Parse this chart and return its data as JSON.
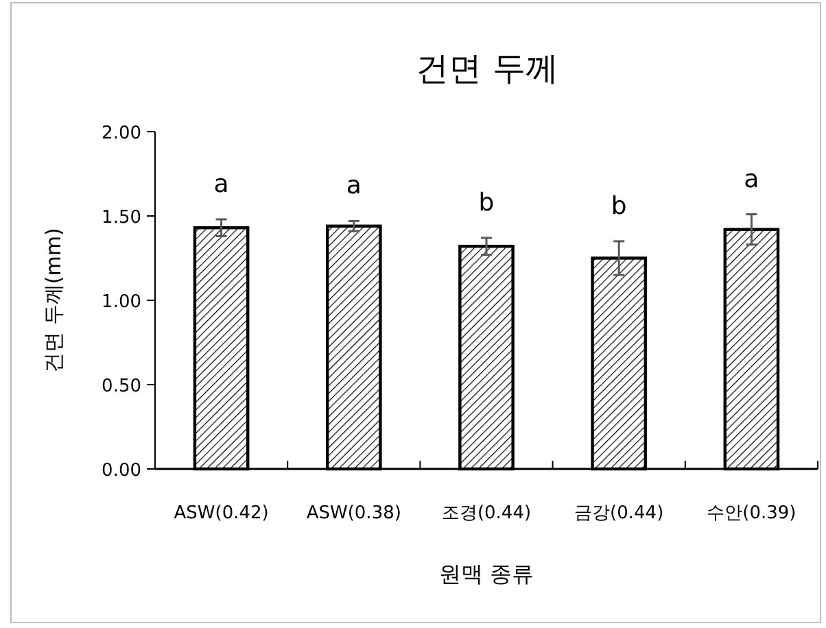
{
  "chart_data": {
    "type": "bar",
    "title": "건면 두께",
    "xlabel": "원맥 종류",
    "ylabel": "건면 두께(mm)",
    "categories": [
      "ASW(0.42)",
      "ASW(0.38)",
      "조경(0.44)",
      "금강(0.44)",
      "수안(0.39)"
    ],
    "values": [
      1.43,
      1.44,
      1.32,
      1.25,
      1.42
    ],
    "errors": [
      0.05,
      0.03,
      0.05,
      0.1,
      0.09
    ],
    "color": "#000000",
    "ylim": [
      0,
      2
    ],
    "yticks": [
      {
        "value": 0,
        "label": "0.00"
      },
      {
        "value": 0.5,
        "label": "0.50"
      },
      {
        "value": 1,
        "label": "1.00"
      },
      {
        "value": 1.5,
        "label": "1.50"
      },
      {
        "value": 2,
        "label": "2.00"
      }
    ],
    "annotations": [
      "a",
      "a",
      "b",
      "b",
      "a"
    ],
    "grid": false
  }
}
